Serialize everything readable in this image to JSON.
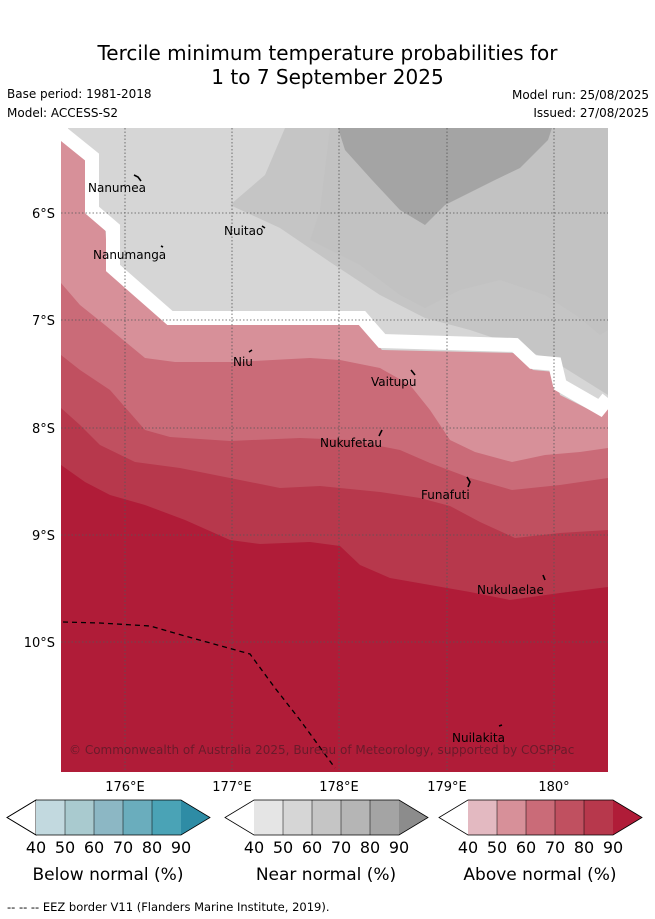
{
  "title": {
    "line1": "Tercile minimum temperature probabilities for",
    "line2": "1 to 7 September 2025"
  },
  "meta": {
    "base_period": "Base period: 1981-2018",
    "model": "Model: ACCESS-S2",
    "model_run": "Model run: 25/08/2025",
    "issued": "Issued: 27/08/2025"
  },
  "map": {
    "lat_labels": [
      "6°S",
      "7°S",
      "8°S",
      "9°S",
      "10°S"
    ],
    "lon_labels": [
      "176°E",
      "177°E",
      "178°E",
      "179°E",
      "180°"
    ],
    "places": [
      "Nanumea",
      "Nuitao",
      "Nanumanga",
      "Niu",
      "Vaitupu",
      "Nukufetau",
      "Funafuti",
      "Nukulaelae",
      "Nuilakita"
    ],
    "credit": "© Commonwealth of Australia 2025, Bureau of Meteorology, supported by COSPPac",
    "colors": {
      "near_40": "#e5e5e5",
      "near_50": "#d6d6d6",
      "near_60": "#c5c5c5",
      "near_70": "#b5b5b5",
      "near_80": "#a4a4a4",
      "near_90": "#8c8c8c",
      "above_40": "#e3b9c1",
      "above_50": "#d79099",
      "above_60": "#ca6b78",
      "above_70": "#c05060",
      "above_80": "#b7384c",
      "above_90": "#b01c38",
      "below_40": "#c2d9df",
      "below_50": "#a9cacf",
      "below_60": "#8cb7c4",
      "below_70": "#6aadbd",
      "below_80": "#4aa3b6",
      "below_90": "#2e8ca5"
    }
  },
  "legends": [
    {
      "title": "Below normal (%)",
      "ticks": [
        "40",
        "50",
        "60",
        "70",
        "80",
        "90"
      ]
    },
    {
      "title": "Near normal (%)",
      "ticks": [
        "40",
        "50",
        "60",
        "70",
        "80",
        "90"
      ]
    },
    {
      "title": "Above normal (%)",
      "ticks": [
        "40",
        "50",
        "60",
        "70",
        "80",
        "90"
      ]
    }
  ],
  "footer": "--  --  -- EEZ border V11 (Flanders Marine Institute, 2019)."
}
